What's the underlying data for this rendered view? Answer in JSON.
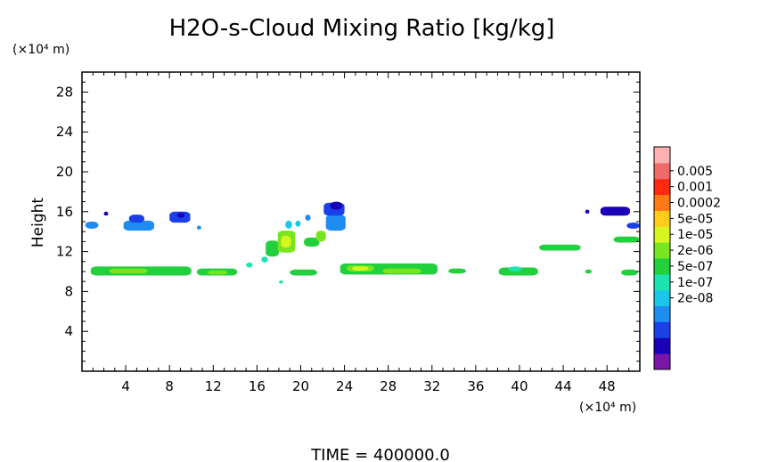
{
  "chart_data": {
    "type": "heatmap",
    "title": "H2O-s-Cloud Mixing Ratio [kg/kg]",
    "ylabel": "Height",
    "y_unit": "(×10⁴ m)",
    "x_unit": "(×10⁴ m)",
    "footer": "TIME = 400000.0",
    "xlim": [
      0,
      51
    ],
    "ylim": [
      0,
      30
    ],
    "x_ticks": [
      4,
      8,
      12,
      16,
      20,
      24,
      28,
      32,
      36,
      40,
      44,
      48
    ],
    "y_ticks": [
      4,
      8,
      12,
      16,
      20,
      24,
      28
    ],
    "colorbar": {
      "labels": [
        "0.005",
        "0.001",
        "0.0002",
        "5e-05",
        "1e-05",
        "2e-06",
        "5e-07",
        "1e-07",
        "2e-08"
      ],
      "colors": [
        "#7a16a6",
        "#1a00b8",
        "#1b40e8",
        "#1f8cf2",
        "#19c7e8",
        "#1de3b0",
        "#22cf3c",
        "#78e61f",
        "#d7f51e",
        "#ffcc1a",
        "#ff7a14",
        "#ff2a12",
        "#f06a6a",
        "#ffb0b0"
      ]
    },
    "patches": [
      {
        "x": 0.3,
        "y": 14.3,
        "w": 1.2,
        "h": 0.7,
        "level": 3
      },
      {
        "x": 2.0,
        "y": 15.6,
        "w": 0.4,
        "h": 0.4,
        "level": 1
      },
      {
        "x": 3.8,
        "y": 14.1,
        "w": 2.8,
        "h": 1.0,
        "level": 3
      },
      {
        "x": 4.3,
        "y": 14.9,
        "w": 1.4,
        "h": 0.8,
        "level": 2
      },
      {
        "x": 8.0,
        "y": 14.9,
        "w": 1.9,
        "h": 1.1,
        "level": 2
      },
      {
        "x": 8.7,
        "y": 15.4,
        "w": 0.7,
        "h": 0.5,
        "level": 1
      },
      {
        "x": 10.5,
        "y": 14.2,
        "w": 0.4,
        "h": 0.4,
        "level": 3
      },
      {
        "x": 0.8,
        "y": 9.6,
        "w": 9.2,
        "h": 0.9,
        "level": 6
      },
      {
        "x": 2.5,
        "y": 9.8,
        "w": 3.5,
        "h": 0.5,
        "level": 7
      },
      {
        "x": 10.5,
        "y": 9.6,
        "w": 3.7,
        "h": 0.7,
        "level": 6
      },
      {
        "x": 11.5,
        "y": 9.7,
        "w": 1.8,
        "h": 0.4,
        "level": 7
      },
      {
        "x": 15.0,
        "y": 10.4,
        "w": 0.6,
        "h": 0.5,
        "level": 5
      },
      {
        "x": 16.4,
        "y": 10.9,
        "w": 0.6,
        "h": 0.6,
        "level": 5
      },
      {
        "x": 16.8,
        "y": 11.5,
        "w": 1.2,
        "h": 1.6,
        "level": 6
      },
      {
        "x": 17.9,
        "y": 11.9,
        "w": 1.6,
        "h": 2.2,
        "level": 7
      },
      {
        "x": 18.2,
        "y": 12.4,
        "w": 0.9,
        "h": 1.2,
        "level": 8
      },
      {
        "x": 18.6,
        "y": 14.3,
        "w": 0.6,
        "h": 0.8,
        "level": 4
      },
      {
        "x": 20.3,
        "y": 12.5,
        "w": 1.4,
        "h": 0.9,
        "level": 6
      },
      {
        "x": 21.4,
        "y": 13.0,
        "w": 0.9,
        "h": 1.1,
        "level": 7
      },
      {
        "x": 22.3,
        "y": 14.1,
        "w": 1.8,
        "h": 1.6,
        "level": 3
      },
      {
        "x": 22.1,
        "y": 15.6,
        "w": 1.9,
        "h": 1.3,
        "level": 2
      },
      {
        "x": 22.7,
        "y": 16.2,
        "w": 1.1,
        "h": 0.8,
        "level": 1
      },
      {
        "x": 20.4,
        "y": 15.1,
        "w": 0.5,
        "h": 0.6,
        "level": 3
      },
      {
        "x": 19.5,
        "y": 14.5,
        "w": 0.5,
        "h": 0.6,
        "level": 4
      },
      {
        "x": 18.0,
        "y": 8.8,
        "w": 0.4,
        "h": 0.3,
        "level": 5
      },
      {
        "x": 19.0,
        "y": 9.6,
        "w": 2.5,
        "h": 0.6,
        "level": 6
      },
      {
        "x": 23.6,
        "y": 9.7,
        "w": 8.9,
        "h": 1.1,
        "level": 6
      },
      {
        "x": 24.2,
        "y": 10.0,
        "w": 2.5,
        "h": 0.6,
        "level": 7
      },
      {
        "x": 24.7,
        "y": 10.1,
        "w": 1.5,
        "h": 0.4,
        "level": 8
      },
      {
        "x": 27.5,
        "y": 9.8,
        "w": 3.5,
        "h": 0.5,
        "level": 7
      },
      {
        "x": 33.5,
        "y": 9.8,
        "w": 1.6,
        "h": 0.5,
        "level": 6
      },
      {
        "x": 38.1,
        "y": 9.6,
        "w": 3.6,
        "h": 0.8,
        "level": 6
      },
      {
        "x": 39.0,
        "y": 10.0,
        "w": 1.2,
        "h": 0.5,
        "level": 5
      },
      {
        "x": 41.8,
        "y": 12.1,
        "w": 3.8,
        "h": 0.6,
        "level": 6
      },
      {
        "x": 46.0,
        "y": 15.8,
        "w": 0.4,
        "h": 0.4,
        "level": 1
      },
      {
        "x": 47.4,
        "y": 15.6,
        "w": 2.7,
        "h": 0.9,
        "level": 1
      },
      {
        "x": 49.8,
        "y": 14.3,
        "w": 1.2,
        "h": 0.6,
        "level": 2
      },
      {
        "x": 48.6,
        "y": 12.9,
        "w": 2.4,
        "h": 0.6,
        "level": 6
      },
      {
        "x": 46.0,
        "y": 9.8,
        "w": 0.6,
        "h": 0.4,
        "level": 6
      },
      {
        "x": 49.3,
        "y": 9.6,
        "w": 1.5,
        "h": 0.6,
        "level": 6
      }
    ]
  }
}
